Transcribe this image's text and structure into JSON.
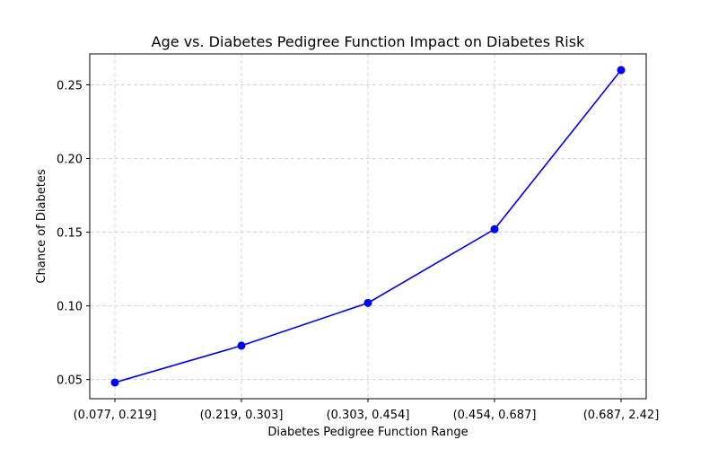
{
  "chart_data": {
    "type": "line",
    "title": "Age vs. Diabetes Pedigree Function Impact on Diabetes Risk",
    "xlabel": "Diabetes Pedigree Function Range",
    "ylabel": "Chance of Diabetes",
    "categories": [
      "(0.077, 0.219]",
      "(0.219, 0.303]",
      "(0.303, 0.454]",
      "(0.454, 0.687]",
      "(0.687, 2.42]"
    ],
    "series": [
      {
        "values": [
          0.048,
          0.073,
          0.102,
          0.152,
          0.26
        ],
        "color": "#0000ff",
        "marker": "circle"
      }
    ],
    "ylim": [
      0.037,
      0.271
    ],
    "yticks": [
      0.05,
      0.1,
      0.15,
      0.2,
      0.25
    ],
    "ytick_labels": [
      "0.05",
      "0.10",
      "0.15",
      "0.20",
      "0.25"
    ],
    "grid": true
  }
}
